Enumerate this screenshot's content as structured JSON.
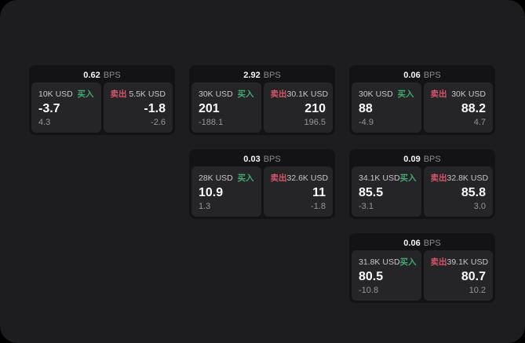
{
  "theme": {
    "outside_bg": "#000000",
    "page_bg": "#1d1d1f",
    "card_bg": "#131315",
    "panel_bg": "#252528",
    "green": "#40a96c",
    "red": "#d5566b"
  },
  "labels": {
    "buy": "买入",
    "sell": "卖出",
    "bps_unit": "BPS"
  },
  "cards": [
    {
      "row": 1,
      "col": 1,
      "bps": "0.62",
      "buy": {
        "size": "10K USD",
        "value": "-3.7",
        "sub": "4.3"
      },
      "sell": {
        "size": "5.5K USD",
        "value": "-1.8",
        "sub": "-2.6"
      }
    },
    {
      "row": 1,
      "col": 2,
      "bps": "2.92",
      "buy": {
        "size": "30K USD",
        "value": "201",
        "sub": "-188.1"
      },
      "sell": {
        "size": "30.1K USD",
        "value": "210",
        "sub": "196.5"
      }
    },
    {
      "row": 1,
      "col": 3,
      "bps": "0.06",
      "buy": {
        "size": "30K USD",
        "value": "88",
        "sub": "-4.9"
      },
      "sell": {
        "size": "30K USD",
        "value": "88.2",
        "sub": "4.7"
      }
    },
    {
      "row": 2,
      "col": 2,
      "bps": "0.03",
      "buy": {
        "size": "28K USD",
        "value": "10.9",
        "sub": "1.3"
      },
      "sell": {
        "size": "32.6K USD",
        "value": "11",
        "sub": "-1.8"
      }
    },
    {
      "row": 2,
      "col": 3,
      "bps": "0.09",
      "buy": {
        "size": "34.1K USD",
        "value": "85.5",
        "sub": "-3.1"
      },
      "sell": {
        "size": "32.8K USD",
        "value": "85.8",
        "sub": "3.0"
      }
    },
    {
      "row": 3,
      "col": 3,
      "bps": "0.06",
      "buy": {
        "size": "31.8K USD",
        "value": "80.5",
        "sub": "-10.8"
      },
      "sell": {
        "size": "39.1K USD",
        "value": "80.7",
        "sub": "10.2"
      }
    }
  ]
}
